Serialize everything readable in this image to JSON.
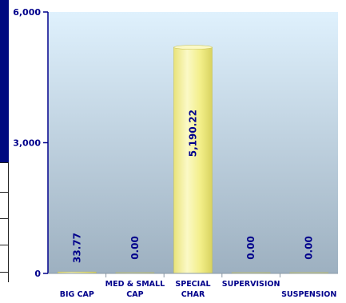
{
  "chart_data": {
    "type": "bar",
    "title": "",
    "xlabel": "",
    "ylabel": "",
    "categories": [
      "BIG CAP",
      "MED & SMALL CAP",
      "SPECIAL CHAR",
      "SUPERVISION",
      "SUSPENSION"
    ],
    "category_lines": [
      [
        "BIG CAP"
      ],
      [
        "MED & SMALL",
        "CAP"
      ],
      [
        "SPECIAL",
        "CHAR"
      ],
      [
        "SUPERVISION"
      ],
      [
        "SUSPENSION"
      ]
    ],
    "values": [
      33.77,
      0.0,
      5190.22,
      0.0,
      0.0
    ],
    "value_labels": [
      "33.77",
      "0.00",
      "5,190.22",
      "0.00",
      "0.00"
    ],
    "ylim": [
      0,
      6000
    ],
    "yticks": [
      0,
      3000,
      6000
    ],
    "ytick_labels": [
      "0",
      "3,000",
      "6,000"
    ],
    "grid": false,
    "legend": "none",
    "colors": {
      "bar": "#f2ee88",
      "bar_light": "#fbf9c6",
      "bar_dark": "#d8d260",
      "plot_top": "#dff1fd",
      "plot_bottom": "#9db0c0",
      "label_text": "#00008b",
      "axis": "#00008b"
    }
  }
}
